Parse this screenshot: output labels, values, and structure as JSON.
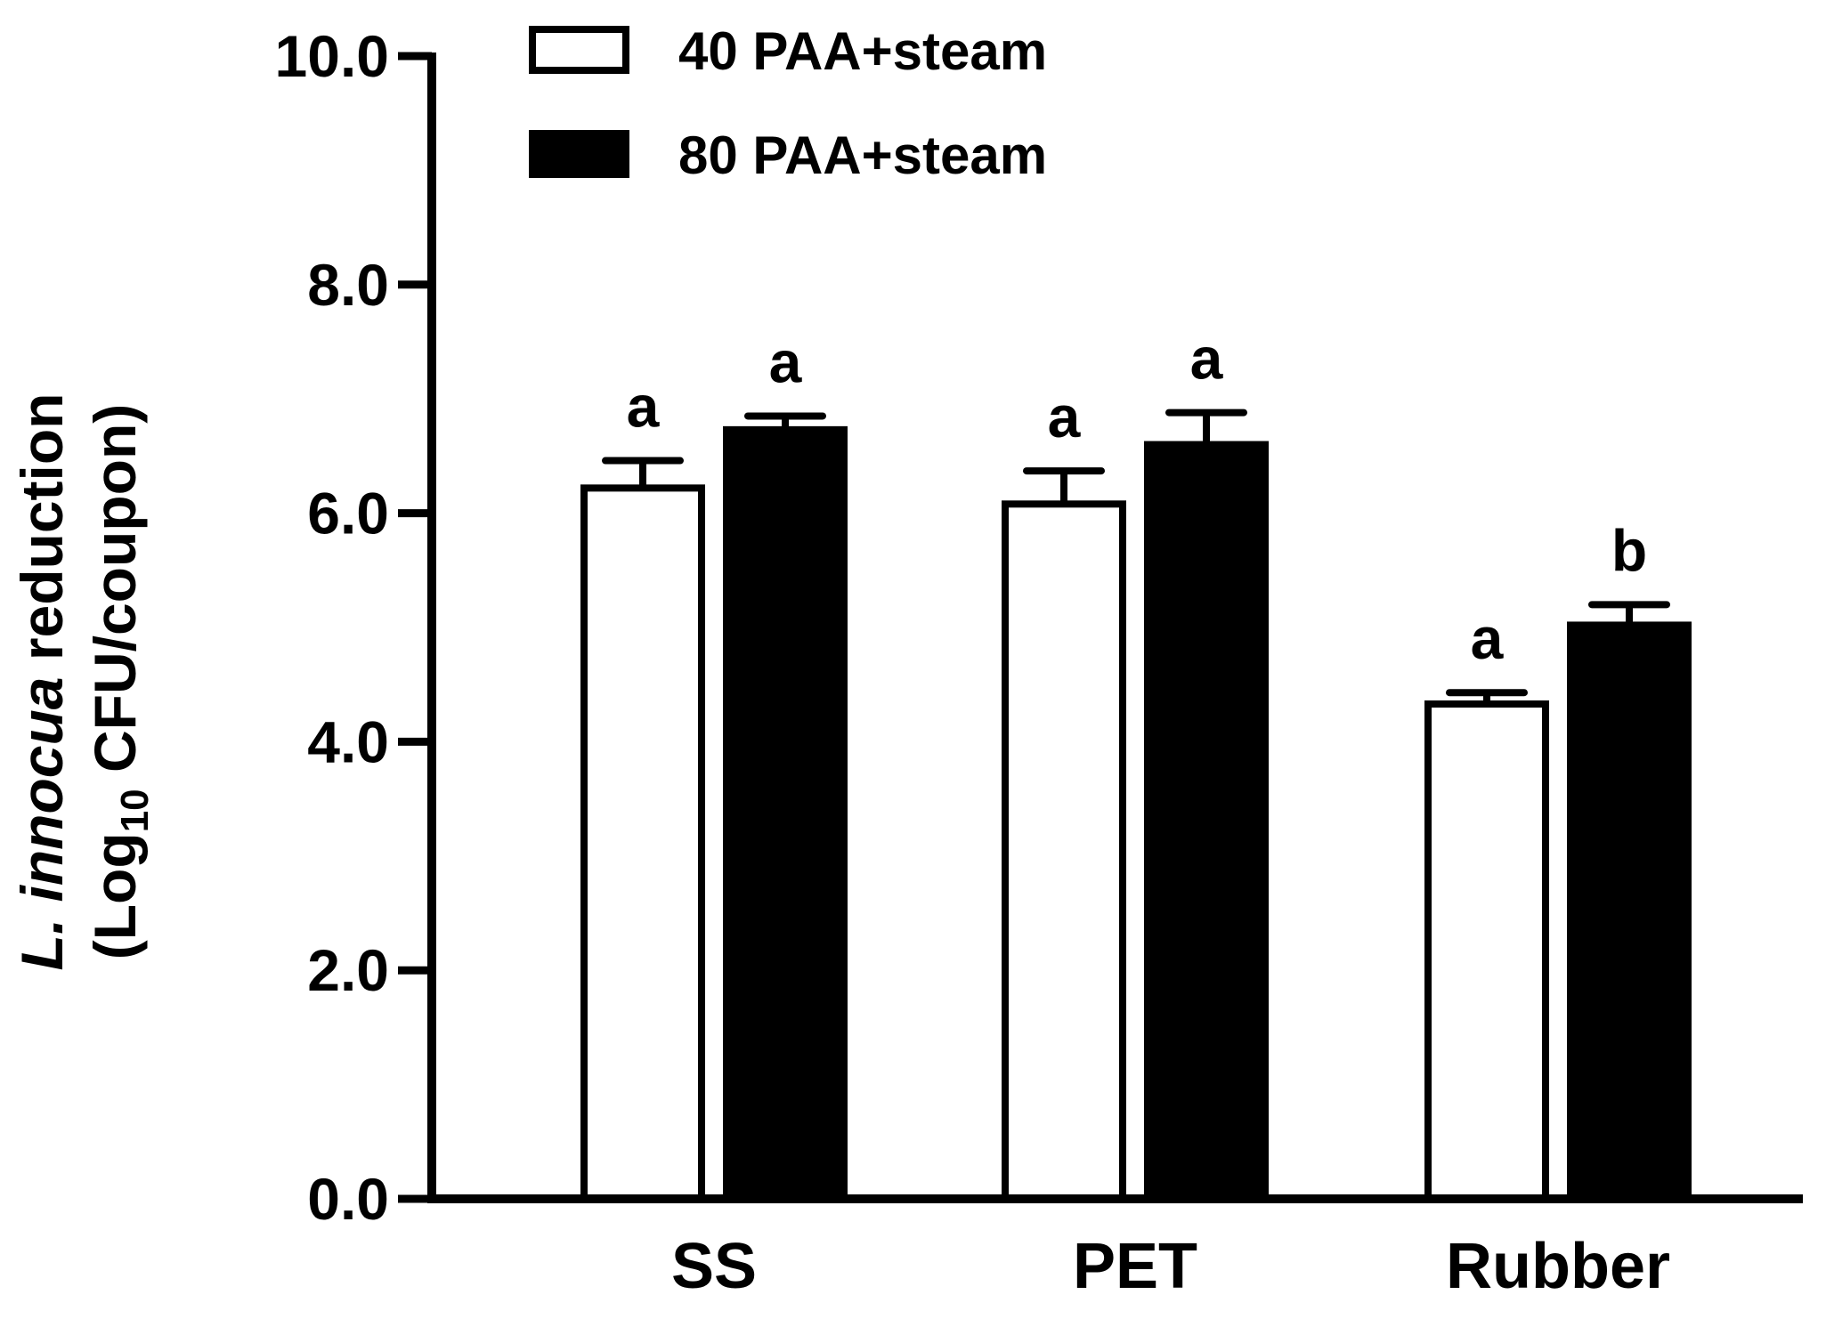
{
  "chart_data": {
    "type": "bar",
    "title": "",
    "xlabel": "",
    "ylabel": {
      "line1_italic": "L. innocua",
      "line1_rest": " reduction",
      "line2_prefix": "(Log",
      "line2_subscript": "10",
      "line2_suffix": " CFU/coupon)"
    },
    "categories": [
      "SS",
      "PET",
      "Rubber"
    ],
    "ylim": [
      0,
      10
    ],
    "yticks": [
      0,
      2,
      4,
      6,
      8,
      10
    ],
    "ytick_labels": [
      "0.0",
      "2.0",
      "4.0",
      "6.0",
      "8.0",
      "10.0"
    ],
    "series": [
      {
        "name": "40 PAA+steam",
        "fill": "#ffffff",
        "stroke": "#000000",
        "values": [
          6.22,
          6.08,
          4.33
        ],
        "errors": [
          0.24,
          0.29,
          0.1
        ],
        "letters": [
          "a",
          "a",
          "a"
        ]
      },
      {
        "name": "80 PAA+steam",
        "fill": "#000000",
        "stroke": "#000000",
        "values": [
          6.73,
          6.6,
          5.02
        ],
        "errors": [
          0.12,
          0.28,
          0.18
        ],
        "letters": [
          "a",
          "a",
          "b"
        ]
      }
    ],
    "legend_position": "top-center",
    "grid": false
  }
}
